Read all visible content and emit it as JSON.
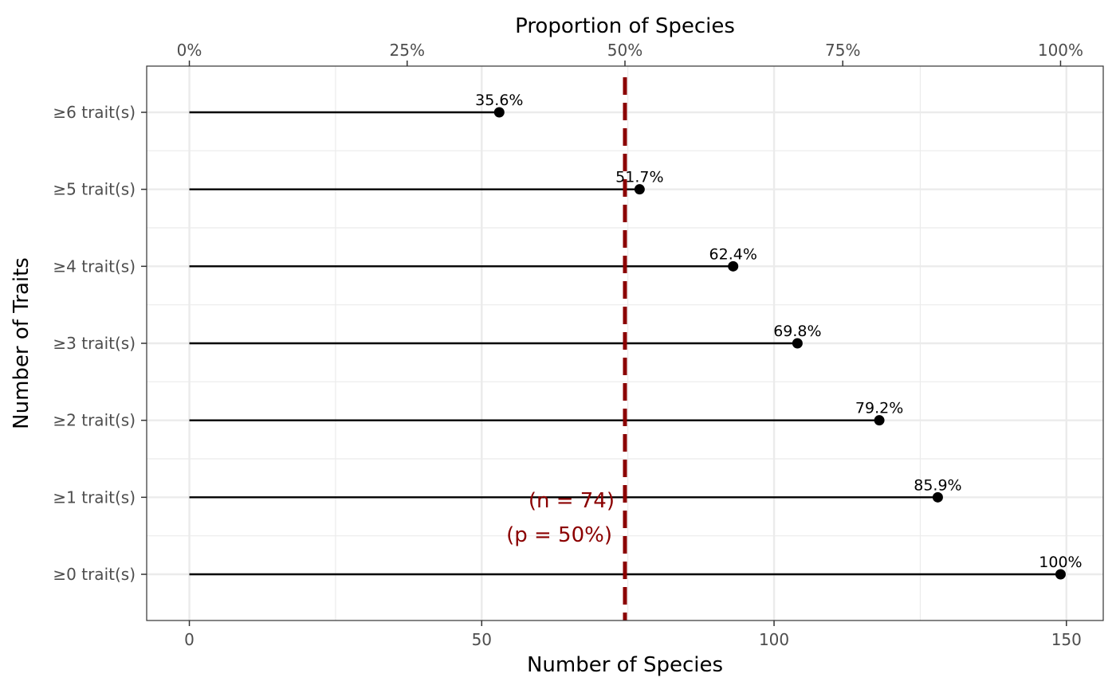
{
  "chart_data": {
    "type": "lollipop",
    "categories": [
      "≥0 trait(s)",
      "≥1 trait(s)",
      "≥2 trait(s)",
      "≥3 trait(s)",
      "≥4 trait(s)",
      "≥5 trait(s)",
      "≥6 trait(s)"
    ],
    "values": [
      149,
      128,
      118,
      104,
      93,
      77,
      53
    ],
    "labels": [
      "100%",
      "85.9%",
      "79.2%",
      "69.8%",
      "62.4%",
      "51.7%",
      "35.6%"
    ],
    "xlabel": "Number of Species",
    "ylabel": "Number of Traits",
    "x2label": "Proportion of Species",
    "xlim": [
      -7.3,
      156.3
    ],
    "xticks": [
      0,
      50,
      100,
      150
    ],
    "xtick_labels": [
      "0",
      "50",
      "100",
      "150"
    ],
    "x2ticks": [
      0,
      37.25,
      74.5,
      111.75,
      149
    ],
    "x2tick_labels": [
      "0%",
      "25%",
      "50%",
      "75%",
      "100%"
    ],
    "reference_line": {
      "x": 74.5,
      "style": "dashed",
      "color": "#8b0000",
      "label_n": "(n = 74)",
      "label_p": "(p = 50%)"
    },
    "grid": true,
    "colors": {
      "line": "#000000",
      "point": "#000000",
      "grid": "#ebebeb",
      "reference": "#8b0000"
    }
  }
}
